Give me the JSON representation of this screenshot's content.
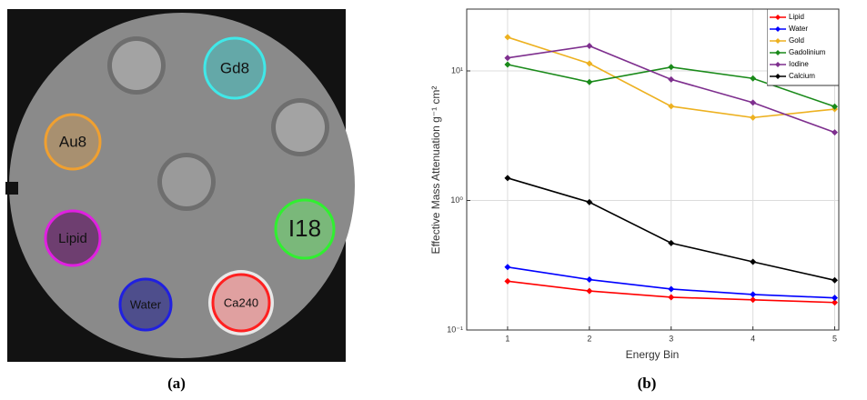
{
  "panels": [
    "(a)",
    "(b)"
  ],
  "phantom": {
    "inserts": [
      "Gd8",
      "Au8",
      "Lipid",
      "I18",
      "Water",
      "Ca240"
    ]
  },
  "chart_data": {
    "type": "line",
    "xlabel": "Energy Bin",
    "ylabel": "Effective Mass Attenuation  g⁻¹ cm²",
    "x": [
      1,
      2,
      3,
      4,
      5
    ],
    "xlim": [
      0.5,
      5.05
    ],
    "xticks": [
      1,
      2,
      3,
      4,
      5
    ],
    "ylim": [
      0.1,
      30
    ],
    "log_y": true,
    "yticks": [
      {
        "value": 0.1,
        "label": "10⁻¹"
      },
      {
        "value": 1,
        "label": "10⁰"
      },
      {
        "value": 10,
        "label": "10¹"
      }
    ],
    "grid": true,
    "legend": "top-right",
    "series": [
      {
        "name": "Lipid",
        "color": "#ff0000",
        "values": [
          0.238,
          0.2,
          0.179,
          0.171,
          0.163
        ]
      },
      {
        "name": "Water",
        "color": "#0000ff",
        "values": [
          0.306,
          0.245,
          0.207,
          0.188,
          0.177
        ]
      },
      {
        "name": "Gold",
        "color": "#edb120",
        "values": [
          18.2,
          11.4,
          5.33,
          4.36,
          5.07
        ]
      },
      {
        "name": "Gadolinium",
        "color": "#1a8a1a",
        "values": [
          11.2,
          8.2,
          10.7,
          8.75,
          5.3
        ]
      },
      {
        "name": "Iodine",
        "color": "#7e2f8e",
        "values": [
          12.6,
          15.6,
          8.6,
          5.69,
          3.35
        ]
      },
      {
        "name": "Calcium",
        "color": "#000000",
        "values": [
          1.49,
          0.97,
          0.469,
          0.336,
          0.242
        ]
      }
    ]
  }
}
